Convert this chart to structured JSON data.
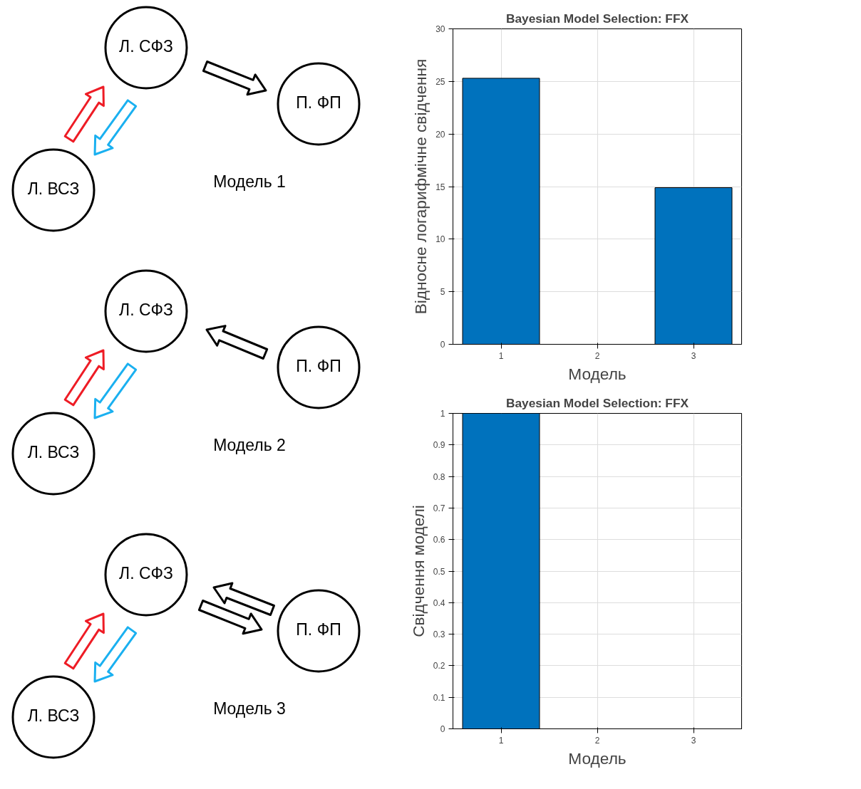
{
  "chart_data": [
    {
      "type": "other",
      "annotations": [
        "Л. СФЗ",
        "П. ФП",
        "Л. ВСЗ",
        "Модель 1"
      ]
    },
    {
      "type": "bar",
      "title": "Bayesian Model Selection: FFX",
      "xlabel": "Модель",
      "ylabel": "Відносне логарифмічне свідчення",
      "categories": [
        "1",
        "2",
        "3"
      ],
      "values": [
        25.3,
        0,
        14.9
      ],
      "color": "#0072bd",
      "ylim": [
        0,
        30
      ],
      "yticks": [
        0,
        5,
        10,
        15,
        20,
        25,
        30
      ],
      "grid": true
    },
    {
      "type": "other",
      "annotations": [
        "Л. СФЗ",
        "П. ФП",
        "Л. ВСЗ",
        "Модель 2"
      ]
    },
    {
      "type": "other",
      "annotations": [
        "Л. СФЗ",
        "П. ФП",
        "Л. ВСЗ",
        "Модель 3"
      ]
    },
    {
      "type": "bar",
      "title": "Bayesian Model Selection: FFX",
      "xlabel": "Модель",
      "ylabel": "Свідчення моделі",
      "categories": [
        "1",
        "2",
        "3"
      ],
      "values": [
        1,
        0,
        0
      ],
      "color": "#0072bd",
      "ylim": [
        0,
        1
      ],
      "yticks": [
        0,
        0.1,
        0.2,
        0.3,
        0.4,
        0.5,
        0.6,
        0.7,
        0.8,
        0.9,
        1
      ],
      "grid": true
    }
  ]
}
